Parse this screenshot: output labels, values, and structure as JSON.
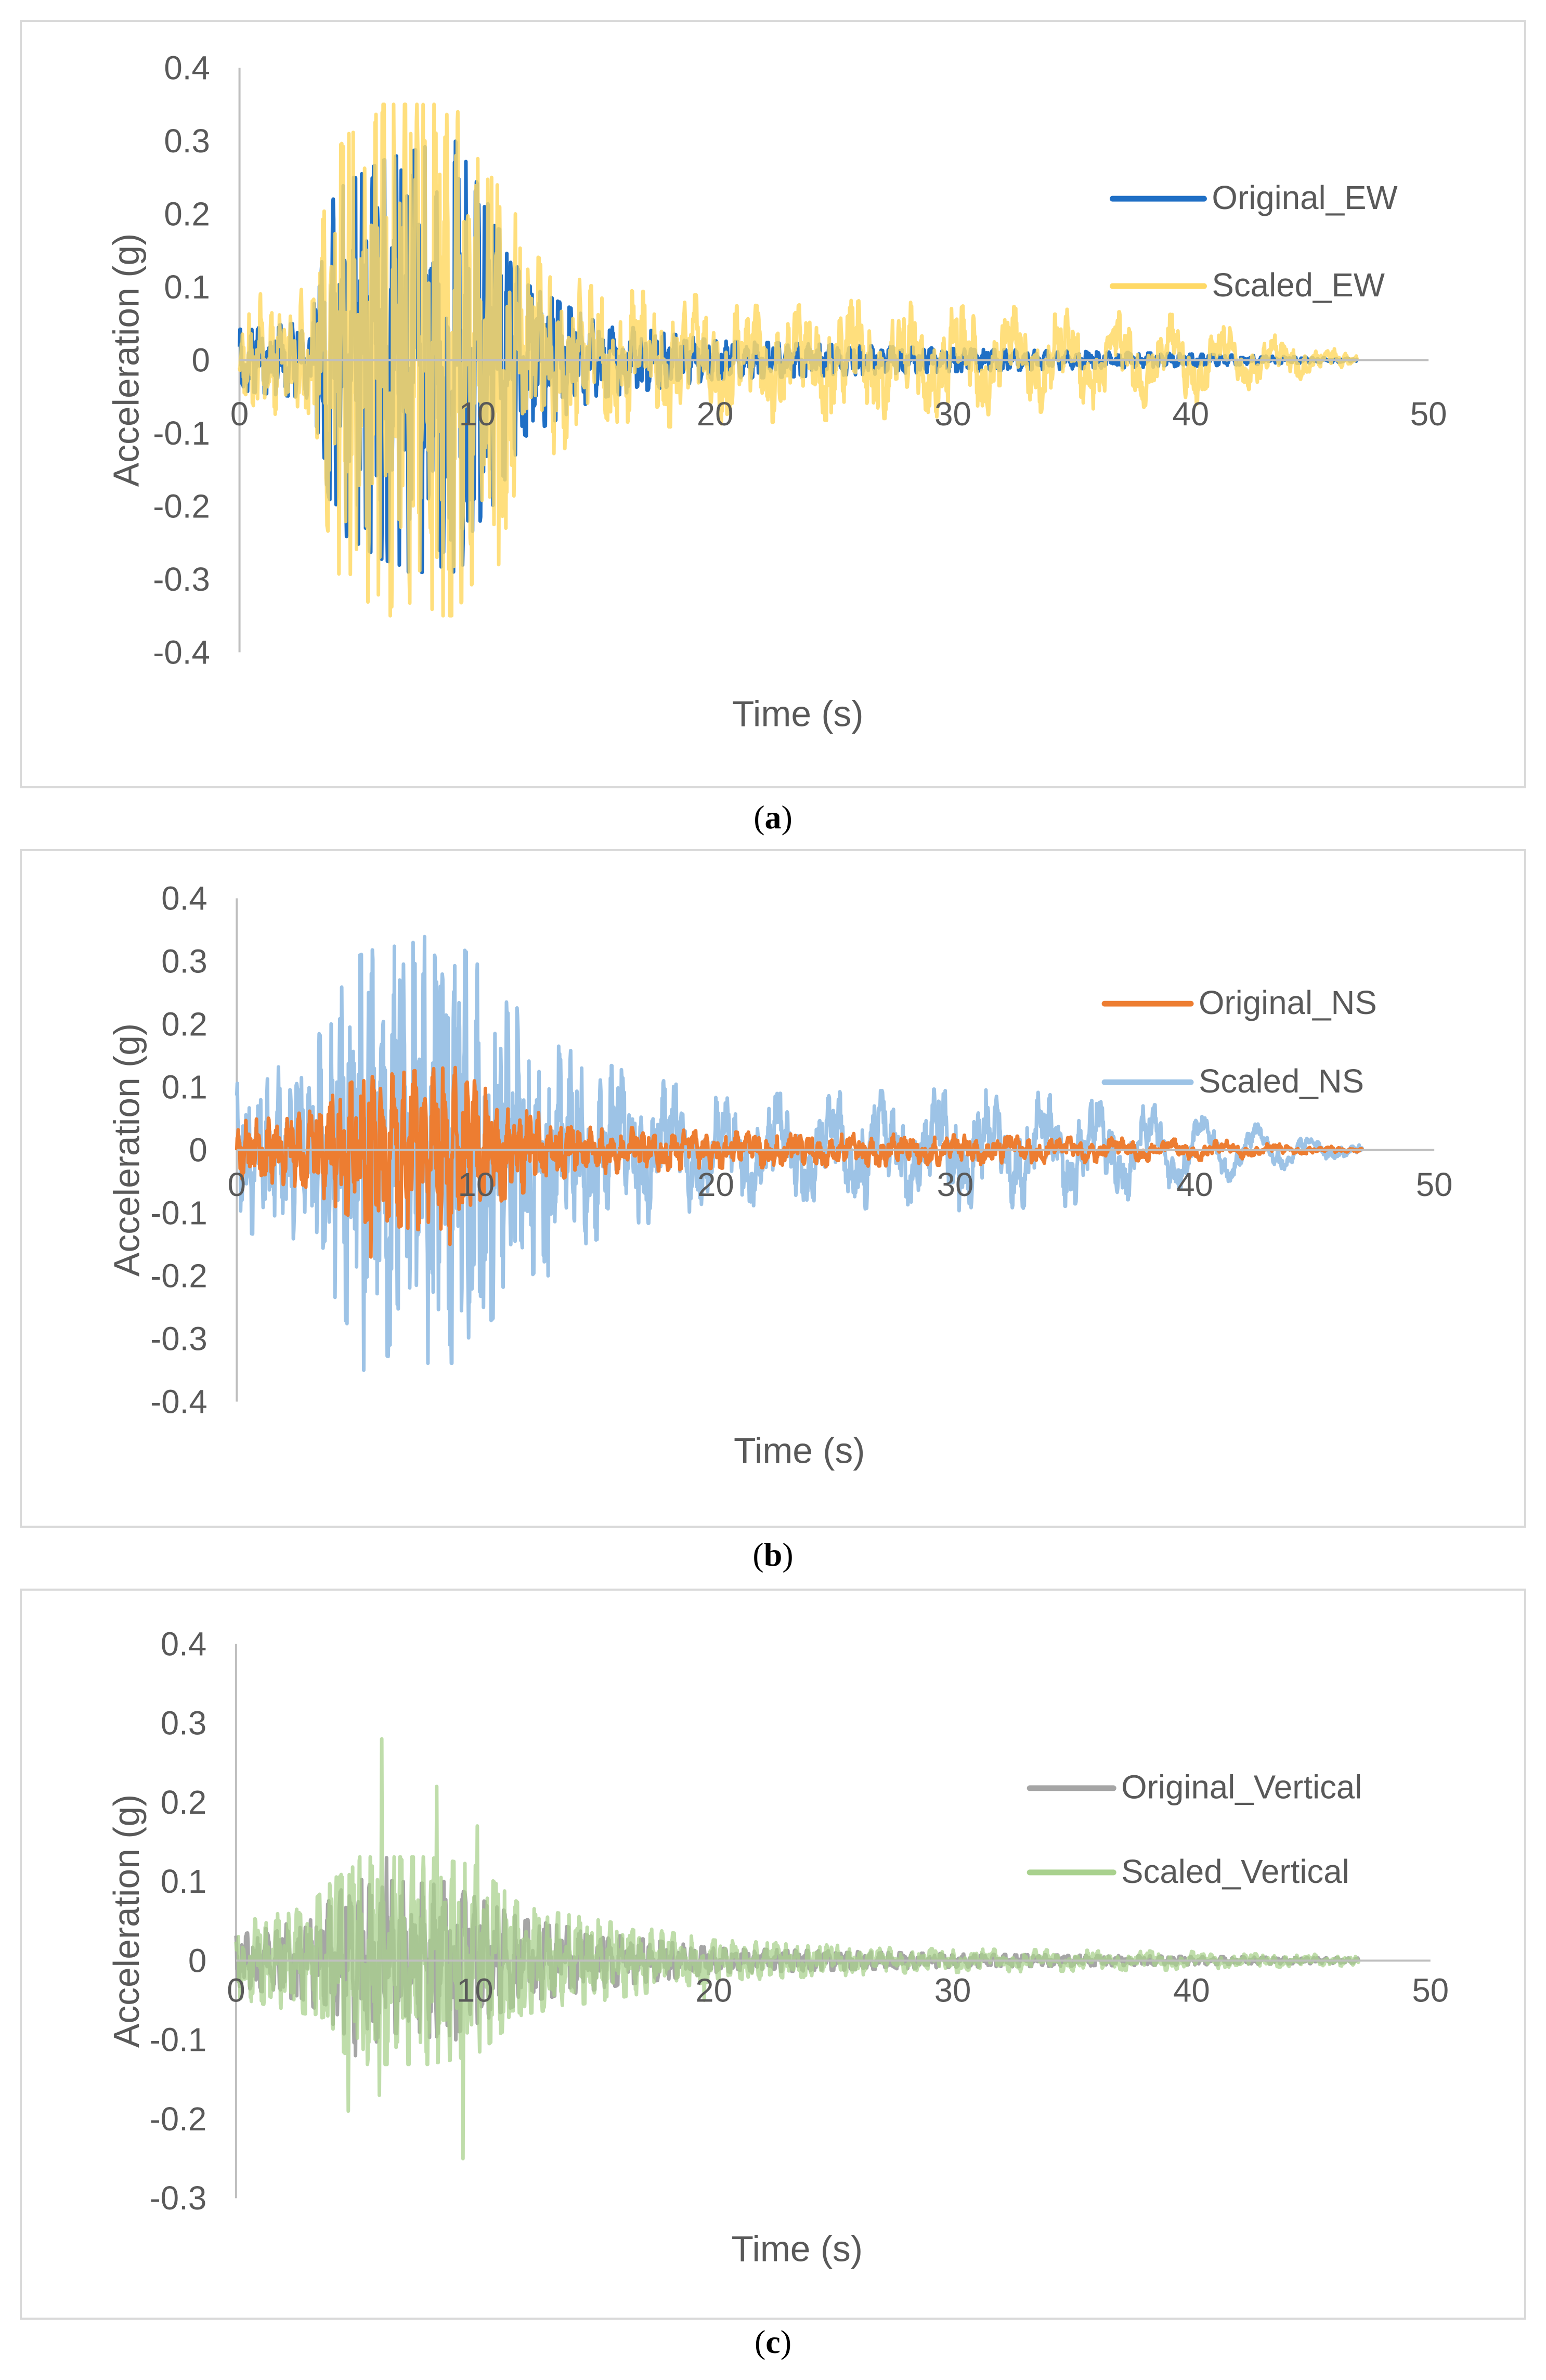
{
  "chart_data": [
    {
      "id": "a",
      "type": "line",
      "caption": {
        "open": "(",
        "letter": "a",
        "close": ")"
      },
      "xlabel": "Time (s)",
      "ylabel": "Acceleration (g)",
      "xlim": [
        0,
        50
      ],
      "ylim": [
        -0.4,
        0.4
      ],
      "xticks": [
        0,
        10,
        20,
        30,
        40,
        50
      ],
      "yticks": [
        0.4,
        0.3,
        0.2,
        0.1,
        0,
        -0.1,
        -0.2,
        -0.3,
        -0.4
      ],
      "grid": false,
      "legend_position": "right",
      "duration": 47,
      "series": [
        {
          "name": "Original_EW",
          "color": "#1f6fc5",
          "opacity": 1,
          "amp_envelope": [
            [
              0,
              0.04
            ],
            [
              3,
              0.05
            ],
            [
              4,
              0.22
            ],
            [
              6,
              0.26
            ],
            [
              9,
              0.29
            ],
            [
              10.5,
              0.2
            ],
            [
              12,
              0.1
            ],
            [
              15,
              0.05
            ],
            [
              20,
              0.025
            ],
            [
              30,
              0.015
            ],
            [
              40,
              0.008
            ],
            [
              47,
              0.002
            ]
          ],
          "seed": 11,
          "long_period": 0,
          "peaks": [
            [
              4.8,
              0.25
            ],
            [
              5.3,
              -0.23
            ],
            [
              6.8,
              0.26
            ],
            [
              7.1,
              -0.29
            ],
            [
              8.3,
              0.23
            ],
            [
              9.0,
              -0.29
            ],
            [
              10.3,
              0.21
            ],
            [
              9.6,
              -0.22
            ],
            [
              12.3,
              0.09
            ],
            [
              11.6,
              -0.13
            ]
          ]
        },
        {
          "name": "Scaled_EW",
          "color": "#ffd966",
          "opacity": 0.85,
          "amp_envelope": [
            [
              0,
              0.05
            ],
            [
              3,
              0.06
            ],
            [
              4,
              0.24
            ],
            [
              6,
              0.3
            ],
            [
              9,
              0.3
            ],
            [
              10.5,
              0.22
            ],
            [
              12,
              0.11
            ],
            [
              15,
              0.06
            ],
            [
              20,
              0.05
            ],
            [
              30,
              0.04
            ],
            [
              40,
              0.025
            ],
            [
              47,
              0.005
            ]
          ],
          "seed": 37,
          "long_period": 0.035,
          "peaks": [
            [
              4.6,
              0.31
            ],
            [
              5.9,
              -0.27
            ],
            [
              7.2,
              0.31
            ],
            [
              7.8,
              0.3
            ],
            [
              8.3,
              -0.27
            ],
            [
              9.1,
              0.28
            ],
            [
              10.6,
              0.25
            ],
            [
              10.9,
              -0.28
            ],
            [
              11.6,
              0.2
            ],
            [
              11.2,
              -0.23
            ]
          ]
        }
      ]
    },
    {
      "id": "b",
      "type": "line",
      "caption": {
        "open": "(",
        "letter": "b",
        "close": ")"
      },
      "xlabel": "Time (s)",
      "ylabel": "Acceleration (g)",
      "xlim": [
        0,
        50
      ],
      "ylim": [
        -0.4,
        0.4
      ],
      "xticks": [
        0,
        10,
        20,
        30,
        40,
        50
      ],
      "yticks": [
        0.4,
        0.3,
        0.2,
        0.1,
        0,
        -0.1,
        -0.2,
        -0.3,
        -0.4
      ],
      "grid": false,
      "legend_position": "right",
      "duration": 47,
      "series": [
        {
          "name": "Scaled_NS",
          "color": "#9dc3e6",
          "opacity": 1,
          "amp_envelope": [
            [
              0,
              0.08
            ],
            [
              3,
              0.1
            ],
            [
              5,
              0.25
            ],
            [
              7,
              0.28
            ],
            [
              9,
              0.28
            ],
            [
              11,
              0.2
            ],
            [
              13,
              0.12
            ],
            [
              16,
              0.08
            ],
            [
              20,
              0.04
            ],
            [
              30,
              0.05
            ],
            [
              36,
              0.04
            ],
            [
              40,
              0.015
            ],
            [
              47,
              0.005
            ]
          ],
          "seed": 53,
          "long_period": 0.045,
          "peaks": [
            [
              5.5,
              0.25
            ],
            [
              5.3,
              -0.35
            ],
            [
              6.8,
              0.27
            ],
            [
              6.4,
              -0.31
            ],
            [
              8.5,
              0.26
            ],
            [
              8.9,
              -0.31
            ],
            [
              10.1,
              0.17
            ],
            [
              10.3,
              -0.25
            ],
            [
              14.4,
              0.13
            ],
            [
              13.0,
              -0.2
            ]
          ]
        },
        {
          "name": "Original_NS",
          "color": "#ed7d31",
          "opacity": 1,
          "amp_envelope": [
            [
              0,
              0.035
            ],
            [
              3,
              0.05
            ],
            [
              5,
              0.1
            ],
            [
              9,
              0.12
            ],
            [
              11,
              0.07
            ],
            [
              14,
              0.03
            ],
            [
              20,
              0.02
            ],
            [
              30,
              0.015
            ],
            [
              40,
              0.008
            ],
            [
              47,
              0.002
            ]
          ],
          "seed": 71,
          "long_period": 0.008,
          "peaks": [
            [
              5.3,
              0.11
            ],
            [
              5.6,
              -0.17
            ],
            [
              8.6,
              0.13
            ],
            [
              8.9,
              -0.15
            ]
          ]
        }
      ]
    },
    {
      "id": "c",
      "type": "line",
      "caption": {
        "open": "(",
        "letter": "c",
        "close": ")"
      },
      "xlabel": "Time (s)",
      "ylabel": "Acceleration (g)",
      "xlim": [
        0,
        50
      ],
      "ylim": [
        -0.3,
        0.4
      ],
      "xticks": [
        0,
        10,
        20,
        30,
        40,
        50
      ],
      "yticks": [
        0.4,
        0.3,
        0.2,
        0.1,
        0,
        -0.1,
        -0.2,
        -0.3
      ],
      "grid": false,
      "legend_position": "right",
      "duration": 47,
      "series": [
        {
          "name": "Original_Vertical",
          "color": "#a5a5a5",
          "opacity": 1,
          "amp_envelope": [
            [
              0,
              0.03
            ],
            [
              3,
              0.05
            ],
            [
              5,
              0.1
            ],
            [
              9,
              0.09
            ],
            [
              12,
              0.05
            ],
            [
              16,
              0.03
            ],
            [
              20,
              0.015
            ],
            [
              30,
              0.008
            ],
            [
              47,
              0.003
            ]
          ],
          "seed": 89,
          "long_period": 0,
          "peaks": [
            [
              6.3,
              0.13
            ],
            [
              5.0,
              -0.12
            ],
            [
              8.7,
              0.1
            ],
            [
              9.2,
              -0.1
            ]
          ]
        },
        {
          "name": "Scaled_Vertical",
          "color": "#a9d18e",
          "opacity": 0.75,
          "amp_envelope": [
            [
              0,
              0.04
            ],
            [
              3,
              0.06
            ],
            [
              5,
              0.12
            ],
            [
              8,
              0.12
            ],
            [
              10,
              0.11
            ],
            [
              12,
              0.06
            ],
            [
              16,
              0.04
            ],
            [
              20,
              0.02
            ],
            [
              28,
              0.01
            ],
            [
              47,
              0.004
            ]
          ],
          "seed": 97,
          "long_period": 0.005,
          "peaks": [
            [
              6.1,
              0.28
            ],
            [
              4.7,
              -0.19
            ],
            [
              8.4,
              0.22
            ],
            [
              9.5,
              -0.25
            ],
            [
              10.1,
              0.17
            ],
            [
              6.0,
              -0.17
            ],
            [
              19.6,
              -0.05
            ]
          ]
        }
      ]
    }
  ]
}
